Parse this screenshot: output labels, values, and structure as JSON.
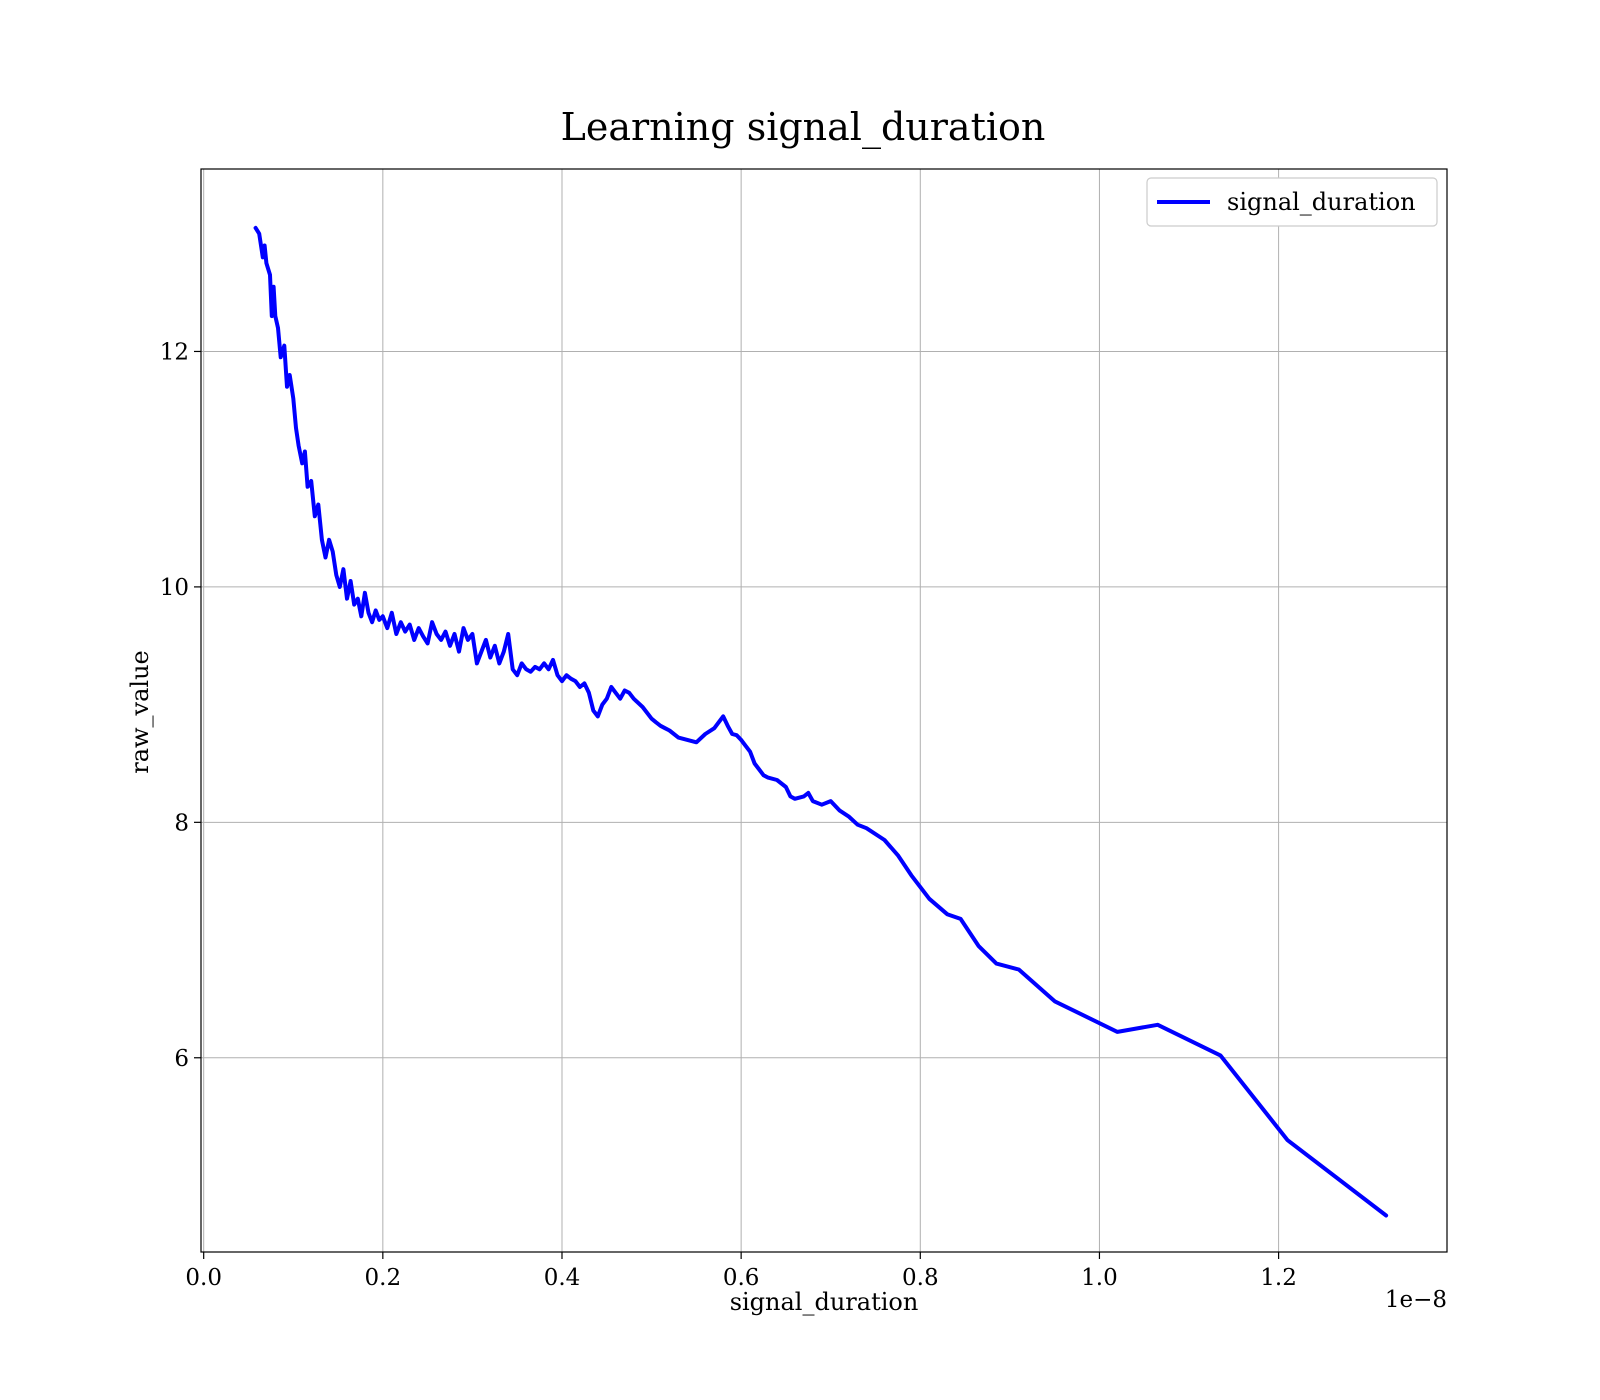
{
  "chart_data": {
    "type": "line",
    "title": "Learning signal_duration",
    "xlabel": "signal_duration",
    "ylabel": "raw_value",
    "x_offset_label": "1e−8",
    "xlim": [
      -0.003,
      1.388
    ],
    "ylim": [
      4.35,
      13.55
    ],
    "x_ticks": [
      0.0,
      0.2,
      0.4,
      0.6,
      0.8,
      1.0,
      1.2
    ],
    "x_tick_labels": [
      "0.0",
      "0.2",
      "0.4",
      "0.6",
      "0.8",
      "1.0",
      "1.2"
    ],
    "y_ticks": [
      6,
      8,
      10,
      12
    ],
    "y_tick_labels": [
      "6",
      "8",
      "10",
      "12"
    ],
    "grid": true,
    "legend_position": "top-right",
    "color": "#0000ff",
    "series": [
      {
        "name": "signal_duration",
        "x": [
          0.058,
          0.062,
          0.066,
          0.068,
          0.07,
          0.074,
          0.076,
          0.078,
          0.08,
          0.083,
          0.086,
          0.09,
          0.093,
          0.096,
          0.1,
          0.103,
          0.106,
          0.11,
          0.113,
          0.116,
          0.12,
          0.124,
          0.128,
          0.132,
          0.136,
          0.14,
          0.144,
          0.148,
          0.152,
          0.156,
          0.16,
          0.164,
          0.168,
          0.172,
          0.176,
          0.18,
          0.184,
          0.188,
          0.192,
          0.196,
          0.2,
          0.205,
          0.21,
          0.215,
          0.22,
          0.225,
          0.23,
          0.235,
          0.24,
          0.245,
          0.25,
          0.255,
          0.26,
          0.265,
          0.27,
          0.275,
          0.28,
          0.285,
          0.29,
          0.295,
          0.3,
          0.305,
          0.31,
          0.315,
          0.32,
          0.325,
          0.33,
          0.335,
          0.34,
          0.345,
          0.35,
          0.355,
          0.36,
          0.365,
          0.37,
          0.375,
          0.38,
          0.385,
          0.39,
          0.395,
          0.4,
          0.405,
          0.41,
          0.415,
          0.42,
          0.425,
          0.43,
          0.435,
          0.44,
          0.445,
          0.45,
          0.455,
          0.46,
          0.465,
          0.47,
          0.475,
          0.48,
          0.49,
          0.5,
          0.505,
          0.51,
          0.515,
          0.52,
          0.53,
          0.54,
          0.55,
          0.56,
          0.57,
          0.575,
          0.58,
          0.585,
          0.59,
          0.595,
          0.6,
          0.605,
          0.61,
          0.615,
          0.62,
          0.625,
          0.63,
          0.64,
          0.65,
          0.655,
          0.66,
          0.67,
          0.675,
          0.68,
          0.69,
          0.7,
          0.71,
          0.72,
          0.73,
          0.74,
          0.76,
          0.775,
          0.79,
          0.81,
          0.83,
          0.845,
          0.865,
          0.885,
          0.91,
          0.95,
          1.02,
          1.065,
          1.135,
          1.21,
          1.32
        ],
        "y": [
          13.05,
          13.0,
          12.8,
          12.9,
          12.75,
          12.65,
          12.3,
          12.55,
          12.3,
          12.2,
          11.95,
          12.05,
          11.7,
          11.8,
          11.6,
          11.35,
          11.2,
          11.05,
          11.15,
          10.85,
          10.9,
          10.6,
          10.7,
          10.4,
          10.25,
          10.4,
          10.3,
          10.1,
          10.0,
          10.15,
          9.9,
          10.05,
          9.85,
          9.9,
          9.75,
          9.95,
          9.78,
          9.7,
          9.8,
          9.72,
          9.75,
          9.65,
          9.78,
          9.6,
          9.7,
          9.62,
          9.68,
          9.55,
          9.65,
          9.58,
          9.52,
          9.7,
          9.6,
          9.55,
          9.62,
          9.5,
          9.6,
          9.45,
          9.65,
          9.55,
          9.6,
          9.35,
          9.45,
          9.55,
          9.4,
          9.5,
          9.35,
          9.45,
          9.6,
          9.3,
          9.25,
          9.35,
          9.3,
          9.28,
          9.32,
          9.3,
          9.35,
          9.3,
          9.38,
          9.25,
          9.2,
          9.25,
          9.22,
          9.2,
          9.15,
          9.18,
          9.1,
          8.95,
          8.9,
          9.0,
          9.05,
          9.15,
          9.1,
          9.05,
          9.12,
          9.1,
          9.05,
          8.98,
          8.88,
          8.85,
          8.82,
          8.8,
          8.78,
          8.72,
          8.7,
          8.68,
          8.75,
          8.8,
          8.85,
          8.9,
          8.82,
          8.75,
          8.74,
          8.7,
          8.65,
          8.6,
          8.5,
          8.45,
          8.4,
          8.38,
          8.36,
          8.3,
          8.22,
          8.2,
          8.22,
          8.25,
          8.18,
          8.15,
          8.18,
          8.1,
          8.05,
          7.98,
          7.95,
          7.85,
          7.72,
          7.55,
          7.35,
          7.22,
          7.18,
          6.95,
          6.8,
          6.75,
          6.48,
          6.22,
          6.28,
          6.02,
          5.3,
          4.66
        ]
      }
    ]
  }
}
